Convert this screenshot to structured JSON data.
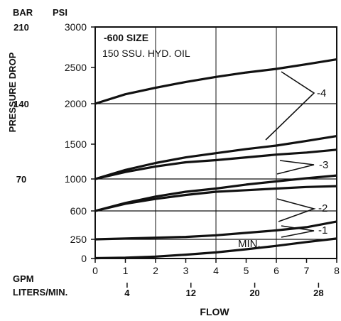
{
  "chart_data": {
    "type": "line",
    "header": {
      "bar_unit": "BAR",
      "psi_unit": "PSI"
    },
    "ylabel": "PRESSURE DROP",
    "xlabel": "FLOW",
    "annotation": {
      "line1": "-600 SIZE",
      "line2": "150 SSU. HYD. OIL"
    },
    "psi_ticks": [
      {
        "value": 0,
        "label": "0"
      },
      {
        "value": 250,
        "label": "250"
      },
      {
        "value": 600,
        "label": "600"
      },
      {
        "value": 1000,
        "label": "1000"
      },
      {
        "value": 1500,
        "label": "1500"
      },
      {
        "value": 2000,
        "label": "2000"
      },
      {
        "value": 2500,
        "label": "2500"
      },
      {
        "value": 3000,
        "label": "3000"
      }
    ],
    "bar_ticks": [
      {
        "value": 1000,
        "label": "70"
      },
      {
        "value": 2000,
        "label": "140"
      },
      {
        "value": 3000,
        "label": "210"
      }
    ],
    "gpm_label": "GPM",
    "lpm_label": "LITERS/MIN.",
    "gpm_ticks": [
      {
        "value": 0,
        "label": "0"
      },
      {
        "value": 1,
        "label": "1"
      },
      {
        "value": 2,
        "label": "2"
      },
      {
        "value": 3,
        "label": "3"
      },
      {
        "value": 4,
        "label": "4"
      },
      {
        "value": 5,
        "label": "5"
      },
      {
        "value": 6,
        "label": "6"
      },
      {
        "value": 7,
        "label": "7"
      },
      {
        "value": 8,
        "label": "8"
      }
    ],
    "lpm_ticks": [
      {
        "value": 4,
        "label": "4"
      },
      {
        "value": 12,
        "label": "12"
      },
      {
        "value": 20,
        "label": "20"
      },
      {
        "value": 28,
        "label": "28"
      }
    ],
    "xlim": [
      0,
      8
    ],
    "grid_x": [
      2,
      4,
      6
    ],
    "grid_y": [
      250,
      600,
      1000,
      2000
    ],
    "series": [
      {
        "name": "-4",
        "x": [
          0,
          1,
          2,
          3,
          4,
          5,
          6,
          7,
          8
        ],
        "y": [
          2000,
          2130,
          2220,
          2300,
          2370,
          2430,
          2480,
          2540,
          2600
        ]
      },
      {
        "name": "-3",
        "x": [
          0,
          1,
          2,
          3,
          4,
          5,
          6,
          7,
          8
        ],
        "y": [
          1000,
          1130,
          1230,
          1310,
          1370,
          1430,
          1480,
          1540,
          1600
        ]
      },
      {
        "name": "-3",
        "x": [
          0,
          1,
          2,
          3,
          4,
          5,
          6,
          7,
          8
        ],
        "y": [
          1000,
          1100,
          1180,
          1240,
          1270,
          1310,
          1350,
          1380,
          1420
        ]
      },
      {
        "name": "-2",
        "x": [
          0,
          1,
          2,
          3,
          4,
          5,
          6,
          7,
          8
        ],
        "y": [
          600,
          700,
          780,
          840,
          880,
          930,
          970,
          1010,
          1050
        ]
      },
      {
        "name": "-2",
        "x": [
          0,
          1,
          2,
          3,
          4,
          5,
          6,
          7,
          8
        ],
        "y": [
          600,
          690,
          750,
          800,
          840,
          860,
          880,
          900,
          910
        ]
      },
      {
        "name": "-1",
        "x": [
          0,
          1,
          2,
          3,
          4,
          5,
          6,
          7,
          8
        ],
        "y": [
          250,
          260,
          270,
          280,
          300,
          330,
          360,
          400,
          470
        ]
      },
      {
        "name": "MIN.",
        "x": [
          0,
          1,
          2,
          3,
          4,
          5,
          6,
          7,
          8
        ],
        "y": [
          5,
          10,
          25,
          50,
          80,
          120,
          165,
          215,
          260
        ]
      }
    ],
    "labels": [
      {
        "text": "-4",
        "target_x": 6.6,
        "target_y": 2130
      },
      {
        "text": "-3",
        "target_x": 6.6,
        "target_y": 1140
      },
      {
        "text": "-2",
        "target_x": 6.6,
        "target_y": 680
      },
      {
        "text": "-1",
        "target_x": 6.6,
        "target_y": 340
      },
      {
        "text": "MIN.",
        "target_x": 5.2,
        "target_y": 210
      }
    ]
  }
}
